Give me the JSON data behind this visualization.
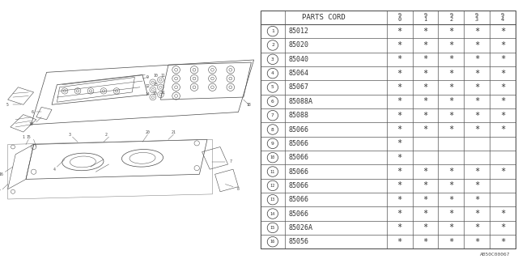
{
  "bg_color": "#ffffff",
  "table_header": "PARTS CORD",
  "year_cols": [
    "9\n0",
    "9\n1",
    "9\n2",
    "9\n3",
    "9\n4"
  ],
  "rows": [
    {
      "num": "1",
      "code": "85012",
      "marks": [
        true,
        true,
        true,
        true,
        true
      ]
    },
    {
      "num": "2",
      "code": "85020",
      "marks": [
        true,
        true,
        true,
        true,
        true
      ]
    },
    {
      "num": "3",
      "code": "85040",
      "marks": [
        true,
        true,
        true,
        true,
        true
      ]
    },
    {
      "num": "4",
      "code": "85064",
      "marks": [
        true,
        true,
        true,
        true,
        true
      ]
    },
    {
      "num": "5",
      "code": "85067",
      "marks": [
        true,
        true,
        true,
        true,
        true
      ]
    },
    {
      "num": "6",
      "code": "85088A",
      "marks": [
        true,
        true,
        true,
        true,
        true
      ]
    },
    {
      "num": "7",
      "code": "85088",
      "marks": [
        true,
        true,
        true,
        true,
        true
      ]
    },
    {
      "num": "8",
      "code": "85066",
      "marks": [
        true,
        true,
        true,
        true,
        true
      ]
    },
    {
      "num": "9",
      "code": "85066",
      "marks": [
        true,
        false,
        false,
        false,
        false
      ]
    },
    {
      "num": "10",
      "code": "85066",
      "marks": [
        true,
        false,
        false,
        false,
        false
      ]
    },
    {
      "num": "11",
      "code": "85066",
      "marks": [
        true,
        true,
        true,
        true,
        true
      ]
    },
    {
      "num": "12",
      "code": "85066",
      "marks": [
        true,
        true,
        true,
        true,
        false
      ]
    },
    {
      "num": "13",
      "code": "85066",
      "marks": [
        true,
        true,
        true,
        true,
        false
      ]
    },
    {
      "num": "14",
      "code": "85066",
      "marks": [
        true,
        true,
        true,
        true,
        true
      ]
    },
    {
      "num": "15",
      "code": "85026A",
      "marks": [
        true,
        true,
        true,
        true,
        true
      ]
    },
    {
      "num": "16",
      "code": "85056",
      "marks": [
        true,
        true,
        true,
        true,
        true
      ]
    }
  ],
  "watermark": "AB50C00067",
  "line_color": "#4a4a4a",
  "text_color": "#333333",
  "table_line_color": "#555555"
}
